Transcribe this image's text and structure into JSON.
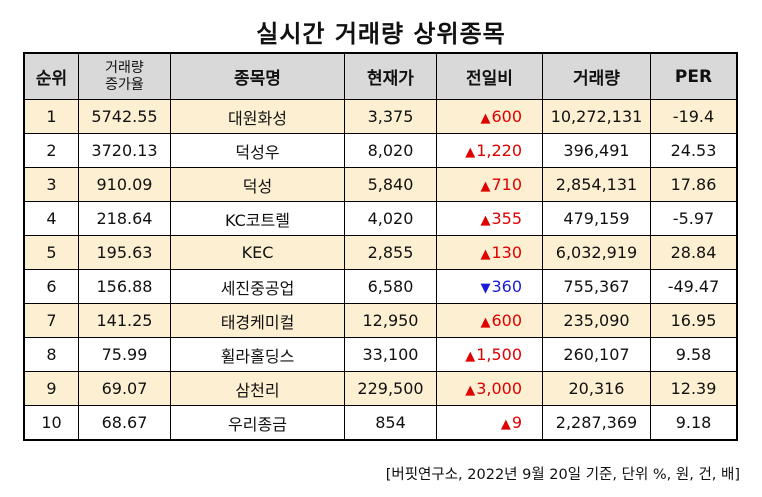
{
  "title": "실시간 거래량 상위종목",
  "headers": {
    "rank": "순위",
    "vol_increase_line1": "거래량",
    "vol_increase_line2": "증가율",
    "name": "종목명",
    "price": "현재가",
    "change": "전일비",
    "volume": "거래량",
    "per": "PER"
  },
  "rows": [
    {
      "rank": "1",
      "increase": "5742.55",
      "name": "대원화성",
      "price": "3,375",
      "arrow": "▲",
      "change": "600",
      "volume": "10,272,131",
      "per": "-19.4"
    },
    {
      "rank": "2",
      "increase": "3720.13",
      "name": "덕성우",
      "price": "8,020",
      "arrow": "▲",
      "change": "1,220",
      "volume": "396,491",
      "per": "24.53"
    },
    {
      "rank": "3",
      "increase": "910.09",
      "name": "덕성",
      "price": "5,840",
      "arrow": "▲",
      "change": "710",
      "volume": "2,854,131",
      "per": "17.86"
    },
    {
      "rank": "4",
      "increase": "218.64",
      "name": "KC코트렐",
      "price": "4,020",
      "arrow": "▲",
      "change": "355",
      "volume": "479,159",
      "per": "-5.97"
    },
    {
      "rank": "5",
      "increase": "195.63",
      "name": "KEC",
      "price": "2,855",
      "arrow": "▲",
      "change": "130",
      "volume": "6,032,919",
      "per": "28.84"
    },
    {
      "rank": "6",
      "increase": "156.88",
      "name": "세진중공업",
      "price": "6,580",
      "arrow": "▼",
      "change": "360",
      "volume": "755,367",
      "per": "-49.47"
    },
    {
      "rank": "7",
      "increase": "141.25",
      "name": "태경케미컬",
      "price": "12,950",
      "arrow": "▲",
      "change": "600",
      "volume": "235,090",
      "per": "16.95"
    },
    {
      "rank": "8",
      "increase": "75.99",
      "name": "휠라홀딩스",
      "price": "33,100",
      "arrow": "▲",
      "change": "1,500",
      "volume": "260,107",
      "per": "9.58"
    },
    {
      "rank": "9",
      "increase": "69.07",
      "name": "삼천리",
      "price": "229,500",
      "arrow": "▲",
      "change": "3,000",
      "volume": "20,316",
      "per": "12.39"
    },
    {
      "rank": "10",
      "increase": "68.67",
      "name": "우리종금",
      "price": "854",
      "arrow": "▲",
      "change": "9",
      "volume": "2,287,369",
      "per": "9.18"
    }
  ],
  "source": "[버핏연구소, 2022년 9월 20일 기준, 단위 %, 원, 건, 배]",
  "colors": {
    "header_bg": "#d9d9d9",
    "odd_row_bg": "#fdefd2",
    "up": "#e00000",
    "down": "#1a1ad6"
  }
}
